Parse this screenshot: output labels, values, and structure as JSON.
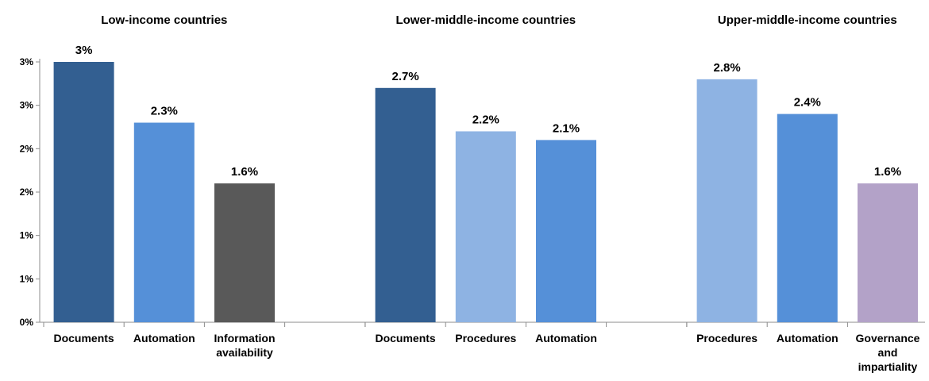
{
  "chart_data": {
    "type": "bar",
    "ylim": [
      0,
      3.0
    ],
    "y_tick_values": [
      0,
      0.5,
      1.0,
      1.5,
      2.0,
      2.5,
      3.0
    ],
    "y_tick_labels": [
      "0%",
      "1%",
      "1%",
      "2%",
      "2%",
      "3%",
      "3%"
    ],
    "grid": false,
    "legend": "none",
    "panels": [
      {
        "title": "Low-income countries",
        "categories": [
          "Documents",
          "Automation",
          "Information availability"
        ],
        "values": [
          3.0,
          2.3,
          1.6
        ],
        "labels": [
          "3%",
          "2.3%",
          "1.6%"
        ],
        "colors": [
          "#335f91",
          "#5590d8",
          "#595959"
        ]
      },
      {
        "title": "Lower-middle-income countries",
        "categories": [
          "Documents",
          "Procedures",
          "Automation"
        ],
        "values": [
          2.7,
          2.2,
          2.1
        ],
        "labels": [
          "2.7%",
          "2.2%",
          "2.1%"
        ],
        "colors": [
          "#335f91",
          "#8eb3e3",
          "#5590d8"
        ]
      },
      {
        "title": "Upper-middle-income countries",
        "categories": [
          "Procedures",
          "Automation",
          "Governance and impartiality"
        ],
        "values": [
          2.8,
          2.4,
          1.6
        ],
        "labels": [
          "2.8%",
          "2.4%",
          "1.6%"
        ],
        "colors": [
          "#8eb3e3",
          "#5590d8",
          "#b3a2c8"
        ]
      }
    ]
  }
}
